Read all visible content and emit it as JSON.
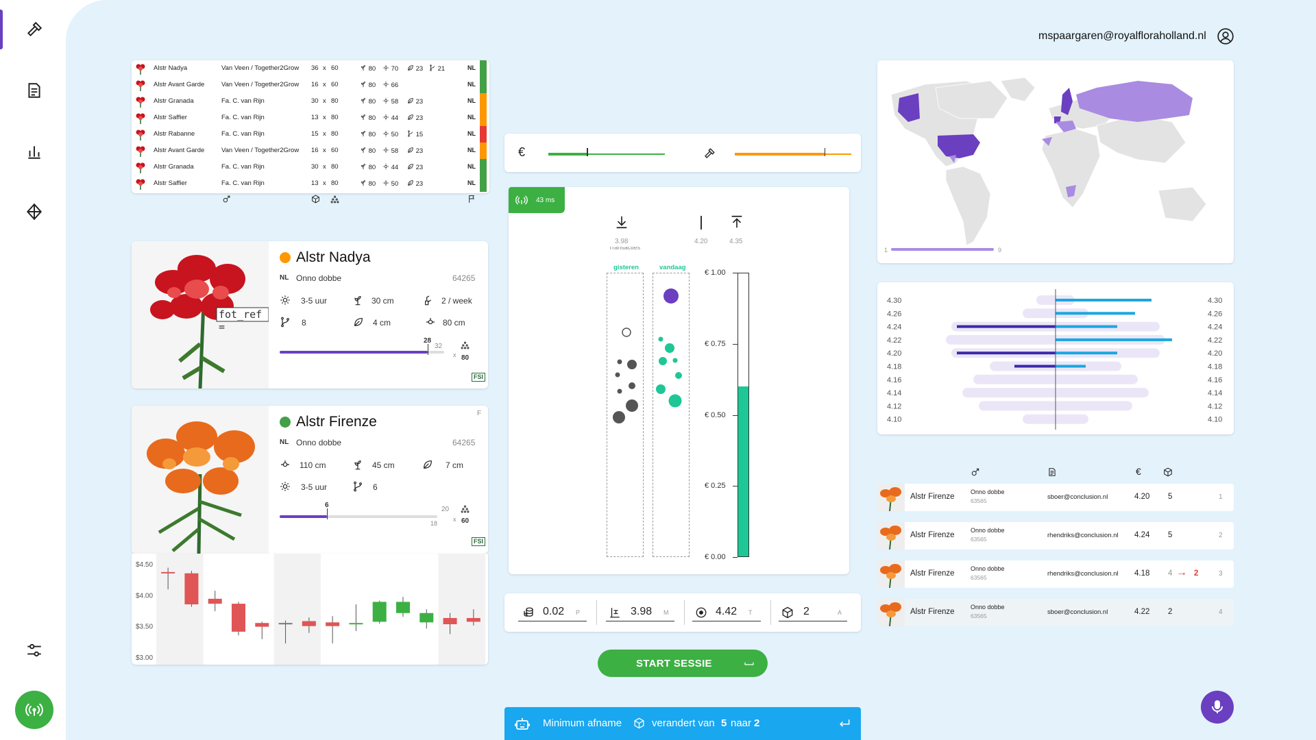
{
  "user": {
    "email": "mspaargaren@royalfloraholland.nl"
  },
  "nav": [
    "auction-gavel-icon",
    "document-icon",
    "bar-chart-icon",
    "diamond-split-icon",
    "sliders-icon",
    "broadcast-icon"
  ],
  "lots": {
    "rows": [
      {
        "name": "Alstr Nadya",
        "grower": "Van Veen / Together2Grow",
        "dim_a": "36",
        "dim_b": "60",
        "stem": "80",
        "sun": "70",
        "leaf": "23",
        "branch": "21",
        "country": "NL",
        "status": "#43a047"
      },
      {
        "name": "Alstr Avant Garde",
        "grower": "Van Veen / Together2Grow",
        "dim_a": "16",
        "dim_b": "60",
        "stem": "80",
        "sun": "66",
        "leaf": "",
        "branch": "",
        "country": "NL",
        "status": "#43a047"
      },
      {
        "name": "Alstr Granada",
        "grower": "Fa. C. van Rijn",
        "dim_a": "30",
        "dim_b": "80",
        "stem": "80",
        "sun": "58",
        "leaf": "23",
        "branch": "",
        "country": "NL",
        "status": "#ff9800"
      },
      {
        "name": "Alstr Saffier",
        "grower": "Fa. C. van Rijn",
        "dim_a": "13",
        "dim_b": "80",
        "stem": "80",
        "sun": "44",
        "leaf": "23",
        "branch": "",
        "country": "NL",
        "status": "#ff9800"
      },
      {
        "name": "Alstr Rabanne",
        "grower": "Fa. C. van Rijn",
        "dim_a": "15",
        "dim_b": "80",
        "stem": "80",
        "sun": "50",
        "leaf": "",
        "branch": "15",
        "country": "NL",
        "status": "#e53935"
      },
      {
        "name": "Alstr Avant Garde",
        "grower": "Van Veen / Together2Grow",
        "dim_a": "16",
        "dim_b": "60",
        "stem": "80",
        "sun": "58",
        "leaf": "23",
        "branch": "",
        "country": "NL",
        "status": "#ff9800"
      },
      {
        "name": "Alstr Granada",
        "grower": "Fa. C. van Rijn",
        "dim_a": "30",
        "dim_b": "80",
        "stem": "80",
        "sun": "44",
        "leaf": "23",
        "branch": "",
        "country": "NL",
        "status": "#43a047"
      },
      {
        "name": "Alstr Saffier",
        "grower": "Fa. C. van Rijn",
        "dim_a": "13",
        "dim_b": "80",
        "stem": "80",
        "sun": "50",
        "leaf": "23",
        "branch": "",
        "country": "NL",
        "status": "#43a047"
      }
    ],
    "times": "x"
  },
  "product1": {
    "name": "Alstr Nadya",
    "status_color": "#ff9800",
    "country": "NL",
    "grower": "Onno dobbe",
    "code": "64265",
    "photo_label": "fot_ref =",
    "light": "3-5 uur",
    "height": "30 cm",
    "supply": "2 / week",
    "branches": "8",
    "leaf": "4 cm",
    "width": "80 cm",
    "progress_mark": "28",
    "progress_max": "32",
    "times": "x",
    "total": "80",
    "progress_fraction": 0.9
  },
  "product2": {
    "name": "Alstr Firenze",
    "status_color": "#43a047",
    "corner": "F",
    "country": "NL",
    "grower": "Onno dobbe",
    "code": "64265",
    "width": "110 cm",
    "height": "45 cm",
    "leaf": "7 cm",
    "light": "3-5 uur",
    "branches": "6",
    "progress_mark": "6",
    "progress_max": "20",
    "progress_sub": "18",
    "times": "x",
    "total": "60",
    "progress_fraction": 0.3
  },
  "candles": {
    "y_labels": [
      "$4.50",
      "$4.00",
      "$3.50",
      "$3.00"
    ],
    "ylim": [
      3.0,
      4.5
    ],
    "items": [
      {
        "o": 4.38,
        "c": 4.36,
        "h": 4.45,
        "l": 4.1,
        "color": "#e05555"
      },
      {
        "o": 4.36,
        "c": 3.86,
        "h": 4.4,
        "l": 3.82,
        "color": "#e05555"
      },
      {
        "o": 3.95,
        "c": 3.87,
        "h": 4.08,
        "l": 3.75,
        "color": "#e05555"
      },
      {
        "o": 3.87,
        "c": 3.42,
        "h": 3.9,
        "l": 3.36,
        "color": "#e05555"
      },
      {
        "o": 3.56,
        "c": 3.5,
        "h": 3.58,
        "l": 3.3,
        "color": "#e05555"
      },
      {
        "o": 3.56,
        "c": 3.55,
        "h": 3.6,
        "l": 3.23,
        "color": "#777777"
      },
      {
        "o": 3.59,
        "c": 3.51,
        "h": 3.65,
        "l": 3.4,
        "color": "#e05555"
      },
      {
        "o": 3.57,
        "c": 3.51,
        "h": 3.67,
        "l": 3.23,
        "color": "#e05555"
      },
      {
        "o": 3.56,
        "c": 3.56,
        "h": 3.86,
        "l": 3.43,
        "color": "#3cb043"
      },
      {
        "o": 3.58,
        "c": 3.9,
        "h": 3.92,
        "l": 3.55,
        "color": "#3cb043"
      },
      {
        "o": 3.72,
        "c": 3.9,
        "h": 3.98,
        "l": 3.66,
        "color": "#3cb043"
      },
      {
        "o": 3.57,
        "c": 3.72,
        "h": 3.78,
        "l": 3.47,
        "color": "#3cb043"
      },
      {
        "o": 3.64,
        "c": 3.54,
        "h": 3.72,
        "l": 3.38,
        "color": "#e05555"
      },
      {
        "o": 3.64,
        "c": 3.58,
        "h": 3.78,
        "l": 3.52,
        "color": "#e05555"
      }
    ]
  },
  "price_bar": {
    "currency": "€",
    "left_fill": 0.33,
    "right_fill": 0.77
  },
  "clock": {
    "latency": "43 ms",
    "min_label": "3.98",
    "current_label": "4.20",
    "max_label": "4.35",
    "header_hidden": "Transacties",
    "col1": "gisteren",
    "col2": "vandaag",
    "y_ticks": [
      "€ 1.00",
      "€ 0.75",
      "€ 0.50",
      "€ 0.25",
      "€ 0.00"
    ],
    "fill_value": 0.6
  },
  "controls": {
    "step": "0.02",
    "step_unit": "P",
    "min": "3.98",
    "min_unit": "M",
    "target": "4.42",
    "target_unit": "T",
    "amount": "2",
    "amount_unit": "A"
  },
  "start_button": {
    "label": "START SESSIE"
  },
  "notification": {
    "prefix": "Minimum afname",
    "middle": "verandert van",
    "from": "5",
    "conj": "naar",
    "to": "2"
  },
  "map": {
    "legend_min": "1",
    "legend_max": "9"
  },
  "depth": {
    "labels": [
      "4.30",
      "4.26",
      "4.24",
      "4.22",
      "4.20",
      "4.18",
      "4.16",
      "4.14",
      "4.12",
      "4.10"
    ],
    "buy": [
      0,
      0,
      0.72,
      0,
      0.72,
      0.3,
      0,
      0,
      0,
      0
    ],
    "sell": [
      0.7,
      0.58,
      0.45,
      0.85,
      0.45,
      0.22,
      0,
      0,
      0,
      0
    ]
  },
  "bids": {
    "header_icons": [
      "gender-icon",
      "document-icon",
      "euro-icon",
      "box-icon"
    ],
    "header_euro": "€",
    "rows": [
      {
        "name": "Alstr Firenze",
        "grower": "Onno dobbe",
        "code": "63565",
        "email": "sboer@conclusion.nl",
        "price": "4.20",
        "qty": "5",
        "qty_new": "",
        "rank": "1"
      },
      {
        "name": "Alstr Firenze",
        "grower": "Onno dobbe",
        "code": "63565",
        "email": "rhendriks@conclusion.nl",
        "price": "4.24",
        "qty": "5",
        "qty_new": "",
        "rank": "2"
      },
      {
        "name": "Alstr Firenze",
        "grower": "Onno dobbe",
        "code": "63565",
        "email": "rhendriks@conclusion.nl",
        "price": "4.18",
        "qty": "4",
        "qty_new": "2",
        "rank": "3"
      },
      {
        "name": "Alstr Firenze",
        "grower": "Onno dobbe",
        "code": "63565",
        "email": "sboer@conclusion.nl",
        "price": "4.22",
        "qty": "2",
        "qty_new": "",
        "rank": "4"
      }
    ]
  }
}
